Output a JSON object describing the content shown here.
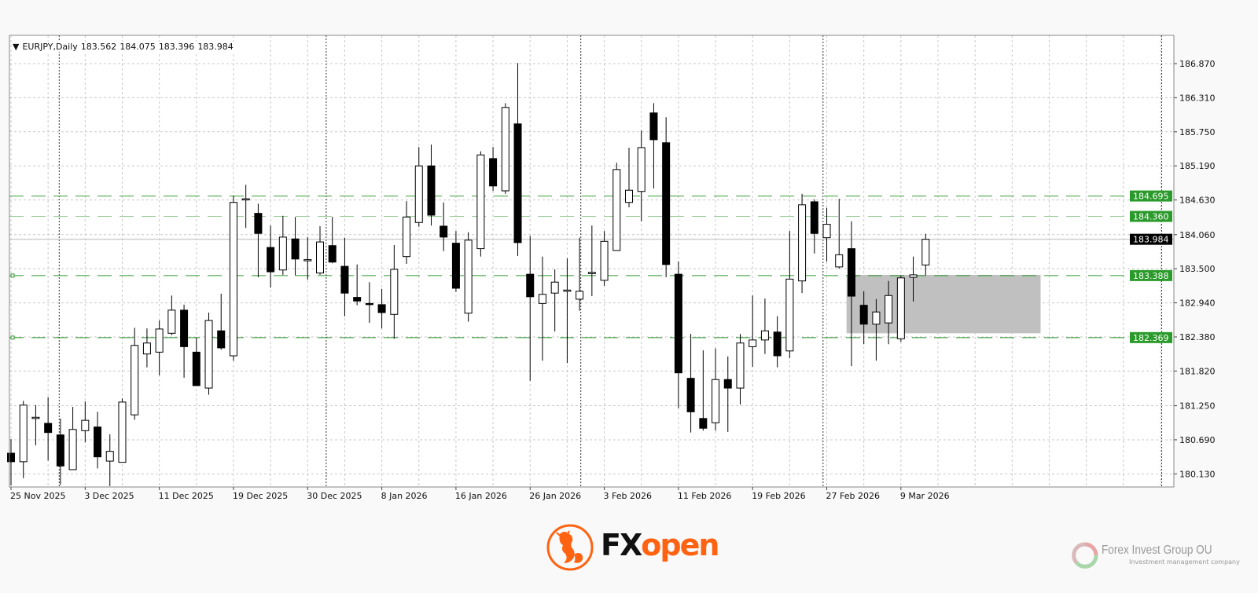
{
  "header": {
    "menu_icon": "triangle-down-icon",
    "symbol": "EURJPY,Daily",
    "open": "183.562",
    "high": "184.075",
    "low": "183.396",
    "close": "183.984"
  },
  "chart_data": {
    "type": "candlestick",
    "symbol": "EURJPY",
    "timeframe": "Daily",
    "ylim": [
      180.0,
      187.35
    ],
    "grid": true,
    "y_ticks": [
      "186.870",
      "186.310",
      "185.750",
      "185.190",
      "184.630",
      "184.060",
      "183.500",
      "182.940",
      "182.380",
      "181.820",
      "181.250",
      "180.690",
      "180.130"
    ],
    "x_labels": [
      {
        "bar": 0,
        "text": "25 Nov 2025"
      },
      {
        "bar": 6,
        "text": "3 Dec 2025"
      },
      {
        "bar": 12,
        "text": "11 Dec 2025"
      },
      {
        "bar": 18,
        "text": "19 Dec 2025"
      },
      {
        "bar": 24,
        "text": "30 Dec 2025"
      },
      {
        "bar": 30,
        "text": "8 Jan 2026"
      },
      {
        "bar": 36,
        "text": "16 Jan 2026"
      },
      {
        "bar": 42,
        "text": "26 Jan 2026"
      },
      {
        "bar": 48,
        "text": "3 Feb 2026"
      },
      {
        "bar": 54,
        "text": "11 Feb 2026"
      },
      {
        "bar": 60,
        "text": "19 Feb 2026"
      },
      {
        "bar": 66,
        "text": "27 Feb 2026"
      },
      {
        "bar": 72,
        "text": "9 Mar 2026"
      }
    ],
    "period_separators": [
      3.9,
      25.5,
      46.1,
      65.7,
      93.1
    ],
    "ohlc": [
      [
        180.47,
        180.7,
        179.94,
        180.33
      ],
      [
        180.33,
        181.33,
        180.06,
        181.26
      ],
      [
        181.04,
        181.26,
        180.6,
        181.06
      ],
      [
        180.96,
        181.39,
        180.35,
        180.81
      ],
      [
        180.77,
        181.04,
        179.95,
        180.26
      ],
      [
        180.2,
        181.23,
        180.2,
        180.86
      ],
      [
        180.84,
        181.32,
        180.65,
        181.01
      ],
      [
        180.9,
        181.15,
        180.22,
        180.41
      ],
      [
        180.34,
        180.78,
        179.93,
        180.5
      ],
      [
        180.32,
        181.37,
        180.32,
        181.31
      ],
      [
        181.1,
        182.53,
        181.02,
        182.24
      ],
      [
        182.1,
        182.52,
        181.88,
        182.28
      ],
      [
        182.13,
        182.65,
        181.75,
        182.51
      ],
      [
        182.44,
        183.06,
        182.41,
        182.82
      ],
      [
        182.82,
        182.91,
        181.71,
        182.22
      ],
      [
        182.13,
        182.37,
        181.58,
        181.58
      ],
      [
        181.54,
        182.78,
        181.43,
        182.65
      ],
      [
        182.48,
        183.09,
        182.17,
        182.2
      ],
      [
        182.07,
        184.7,
        181.99,
        184.59
      ],
      [
        184.64,
        184.88,
        184.17,
        184.65
      ],
      [
        184.41,
        184.57,
        183.36,
        184.08
      ],
      [
        183.85,
        184.21,
        183.19,
        183.45
      ],
      [
        183.48,
        184.37,
        183.4,
        184.02
      ],
      [
        183.99,
        184.35,
        183.39,
        183.66
      ],
      [
        183.64,
        184.02,
        183.32,
        183.65
      ],
      [
        183.43,
        184.2,
        183.4,
        183.94
      ],
      [
        183.88,
        184.35,
        183.59,
        183.61
      ],
      [
        183.54,
        184.01,
        182.72,
        183.1
      ],
      [
        183.03,
        183.57,
        182.9,
        182.97
      ],
      [
        182.93,
        183.28,
        182.61,
        182.92
      ],
      [
        182.91,
        183.17,
        182.52,
        182.78
      ],
      [
        182.75,
        183.89,
        182.35,
        183.49
      ],
      [
        183.7,
        184.61,
        183.58,
        184.35
      ],
      [
        184.26,
        185.5,
        184.19,
        185.19
      ],
      [
        185.19,
        185.54,
        184.21,
        184.38
      ],
      [
        184.2,
        184.59,
        183.79,
        184.02
      ],
      [
        183.92,
        184.12,
        183.12,
        183.18
      ],
      [
        182.77,
        184.1,
        182.63,
        183.97
      ],
      [
        183.83,
        185.43,
        183.7,
        185.37
      ],
      [
        185.31,
        185.5,
        184.78,
        184.86
      ],
      [
        184.78,
        186.22,
        184.73,
        186.15
      ],
      [
        185.88,
        186.88,
        183.71,
        183.93
      ],
      [
        183.41,
        184.04,
        181.66,
        183.04
      ],
      [
        182.93,
        183.7,
        181.99,
        183.08
      ],
      [
        183.1,
        183.49,
        182.47,
        183.28
      ],
      [
        183.13,
        183.67,
        181.95,
        183.15
      ],
      [
        183.0,
        184.01,
        182.81,
        183.13
      ],
      [
        183.43,
        184.21,
        183.05,
        183.44
      ],
      [
        183.31,
        184.12,
        183.22,
        183.95
      ],
      [
        183.8,
        185.24,
        183.8,
        185.13
      ],
      [
        184.59,
        185.49,
        184.51,
        184.79
      ],
      [
        184.77,
        185.77,
        184.28,
        185.49
      ],
      [
        186.06,
        186.22,
        184.82,
        185.62
      ],
      [
        185.57,
        185.99,
        183.36,
        183.57
      ],
      [
        183.41,
        183.62,
        181.21,
        181.79
      ],
      [
        181.7,
        182.43,
        180.81,
        181.15
      ],
      [
        181.04,
        182.16,
        180.84,
        180.88
      ],
      [
        180.97,
        182.19,
        180.84,
        181.68
      ],
      [
        181.68,
        182.06,
        180.82,
        181.54
      ],
      [
        181.54,
        182.43,
        181.27,
        182.28
      ],
      [
        182.22,
        183.06,
        181.89,
        182.33
      ],
      [
        182.33,
        183.01,
        182.1,
        182.48
      ],
      [
        182.46,
        182.72,
        181.88,
        182.07
      ],
      [
        182.15,
        184.12,
        182.03,
        183.33
      ],
      [
        183.3,
        184.73,
        183.1,
        184.55
      ],
      [
        184.6,
        184.64,
        183.75,
        184.08
      ],
      [
        184.01,
        184.5,
        183.62,
        184.23
      ],
      [
        183.53,
        184.65,
        183.5,
        183.73
      ],
      [
        183.83,
        184.28,
        181.9,
        183.05
      ],
      [
        182.9,
        183.13,
        182.26,
        182.59
      ],
      [
        182.59,
        183.0,
        181.99,
        182.79
      ],
      [
        182.61,
        183.3,
        182.26,
        183.06
      ],
      [
        182.35,
        183.39,
        182.3,
        183.35
      ],
      [
        183.36,
        183.7,
        182.96,
        183.4
      ],
      [
        183.562,
        184.075,
        183.396,
        183.984
      ]
    ],
    "levels": [
      {
        "price": 184.695,
        "label": "184.695",
        "color": "#3a9a3a",
        "style": "dashed"
      },
      {
        "price": 184.36,
        "label": "184.360",
        "color": "#9ccc9c",
        "style": "dashed"
      },
      {
        "price": 183.388,
        "label": "183.388",
        "color": "#2e962e",
        "style": "dashed",
        "marker": true
      },
      {
        "price": 182.369,
        "label": "182.369",
        "color": "#2e962e",
        "style": "dashed",
        "marker": true
      }
    ],
    "current_price": {
      "price": 183.984,
      "label": "183.984",
      "line_color": "#cfcfcf",
      "label_bg": "#000000"
    },
    "zone": {
      "bar_start": 67.6,
      "bar_end": 83.3,
      "price_top": 183.4,
      "price_bottom": 182.44,
      "color": "#c0c0c0"
    },
    "colors": {
      "bull": "#ffffff",
      "bear": "#000000",
      "level_label_bg": "#2a9a2a"
    }
  },
  "footer": {
    "brand_left": {
      "name": "FXopen",
      "part1": "FX",
      "part2": "open",
      "icon": "fxopen-bull-logo-icon",
      "color": "#ff6210"
    },
    "brand_right": {
      "name": "Forex Invest Group OU",
      "tagline": "Investment management company",
      "icon": "fig-circle-logo-icon"
    }
  }
}
